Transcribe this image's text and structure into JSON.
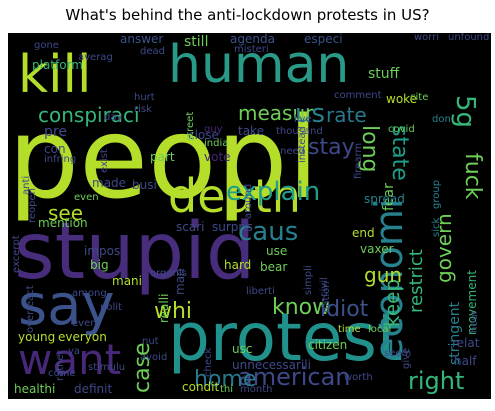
{
  "title": "What's behind the anti-lockdown protests in US?",
  "palette": {
    "lime": "#b5de2b",
    "green": "#6ece58",
    "teal": "#1f9e89",
    "cyan": "#26828e",
    "blue": "#31688e",
    "indigo": "#3e4989",
    "purple": "#482878",
    "dark": "#440154"
  },
  "words": [
    {
      "text": "peopl",
      "color": "#b5de2b"
    },
    {
      "text": "stupid",
      "color": "#472d7b"
    },
    {
      "text": "protest",
      "color": "#21918c"
    },
    {
      "text": "death",
      "color": "#b5de2b"
    },
    {
      "text": "human",
      "color": "#2a9a88"
    },
    {
      "text": "kill",
      "color": "#b5de2b"
    },
    {
      "text": "say",
      "color": "#3b528b"
    },
    {
      "text": "want",
      "color": "#482878"
    },
    {
      "text": "economi",
      "color": "#26828e"
    },
    {
      "text": "5g",
      "color": "#35b779"
    },
    {
      "text": "fuck",
      "color": "#6ece58"
    },
    {
      "text": "explain",
      "color": "#1f9e89"
    },
    {
      "text": "american",
      "color": "#3e4989"
    },
    {
      "text": "us",
      "color": "#26828e"
    },
    {
      "text": "rate",
      "color": "#2a788e"
    },
    {
      "text": "measur",
      "color": "#6ece58"
    },
    {
      "text": "conspiraci",
      "color": "#35b779"
    },
    {
      "text": "stay",
      "color": "#3e4989"
    },
    {
      "text": "long",
      "color": "#6ece58"
    },
    {
      "text": "state",
      "color": "#1f9e89"
    },
    {
      "text": "caus",
      "color": "#26828e"
    },
    {
      "text": "know",
      "color": "#6ece58"
    },
    {
      "text": "idiot",
      "color": "#3b528b"
    },
    {
      "text": "home",
      "color": "#2a788e"
    },
    {
      "text": "case",
      "color": "#6ece58"
    },
    {
      "text": "whi",
      "color": "#b5de2b"
    },
    {
      "text": "see",
      "color": "#b5de2b"
    },
    {
      "text": "restrict",
      "color": "#35b779"
    },
    {
      "text": "govern",
      "color": "#6ece58"
    },
    {
      "text": "right",
      "color": "#35b779"
    },
    {
      "text": "keep",
      "color": "#35b779"
    },
    {
      "text": "gun",
      "color": "#b5de2b"
    },
    {
      "text": "stringent",
      "color": "#26828e"
    },
    {
      "text": "fear",
      "color": "#6ece58"
    },
    {
      "text": "stuff",
      "color": "#6ece58"
    },
    {
      "text": "platform",
      "color": "#35b779"
    },
    {
      "text": "answer",
      "color": "#3b528b"
    },
    {
      "text": "still",
      "color": "#6ece58"
    },
    {
      "text": "agenda",
      "color": "#3b528b"
    },
    {
      "text": "especi",
      "color": "#3b528b"
    },
    {
      "text": "woke",
      "color": "#b5de2b"
    },
    {
      "text": "comment",
      "color": "#3e4989"
    },
    {
      "text": "cite",
      "color": "#6ece58"
    },
    {
      "text": "reopen",
      "color": "#3e4989"
    },
    {
      "text": "anti",
      "color": "#3e4989"
    },
    {
      "text": "excerpt",
      "color": "#3e4989"
    },
    {
      "text": "take",
      "color": "#3e4989"
    },
    {
      "text": "close",
      "color": "#3e4989"
    },
    {
      "text": "thousand",
      "color": "#3e4989"
    },
    {
      "text": "covid",
      "color": "#6ece58"
    },
    {
      "text": "firearm",
      "color": "#3e4989"
    },
    {
      "text": "made",
      "color": "#3e4989"
    },
    {
      "text": "busi",
      "color": "#3e4989"
    },
    {
      "text": "even",
      "color": "#6ece58"
    },
    {
      "text": "mention",
      "color": "#6ece58"
    },
    {
      "text": "scari",
      "color": "#3e4989"
    },
    {
      "text": "surpris",
      "color": "#3e4989"
    },
    {
      "text": "end",
      "color": "#b5de2b"
    },
    {
      "text": "vaxer",
      "color": "#6ece58"
    },
    {
      "text": "part",
      "color": "#6ece58"
    },
    {
      "text": "around",
      "color": "#3e4989"
    },
    {
      "text": "exist",
      "color": "#3e4989"
    },
    {
      "text": "pre",
      "color": "#3e4989"
    },
    {
      "text": "con",
      "color": "#3e4989"
    },
    {
      "text": "impos",
      "color": "#3e4989"
    },
    {
      "text": "big",
      "color": "#6ece58"
    },
    {
      "text": "mani",
      "color": "#b5de2b"
    },
    {
      "text": "among",
      "color": "#3e4989"
    },
    {
      "text": "realli",
      "color": "#6ece58"
    },
    {
      "text": "man",
      "color": "#3e4989"
    },
    {
      "text": "use",
      "color": "#6ece58"
    },
    {
      "text": "hard",
      "color": "#b5de2b"
    },
    {
      "text": "bear",
      "color": "#6ece58"
    },
    {
      "text": "overreact",
      "color": "#3e4989"
    },
    {
      "text": "young",
      "color": "#b5de2b"
    },
    {
      "text": "everyon",
      "color": "#b5de2b"
    },
    {
      "text": "liberti",
      "color": "#3e4989"
    },
    {
      "text": "time",
      "color": "#b5de2b"
    },
    {
      "text": "local",
      "color": "#6ece58"
    },
    {
      "text": "usc",
      "color": "#6ece58"
    },
    {
      "text": "citizen",
      "color": "#6ece58"
    },
    {
      "text": "unnecessarili",
      "color": "#3e4989"
    },
    {
      "text": "healthi",
      "color": "#6ece58"
    },
    {
      "text": "definit",
      "color": "#3e4989"
    },
    {
      "text": "condit",
      "color": "#b5de2b"
    },
    {
      "text": "thi",
      "color": "#6ece58"
    },
    {
      "text": "month",
      "color": "#3e4989"
    },
    {
      "text": "half",
      "color": "#3e4989"
    },
    {
      "text": "relat",
      "color": "#3e4989"
    },
    {
      "text": "movement",
      "color": "#35b779"
    },
    {
      "text": "worth",
      "color": "#3e4989"
    },
    {
      "text": "give",
      "color": "#3e4989"
    },
    {
      "text": "vote",
      "color": "#482878"
    },
    {
      "text": "guy",
      "color": "#482878"
    },
    {
      "text": "india",
      "color": "#6ece58"
    },
    {
      "text": "street",
      "color": "#6ece58"
    },
    {
      "text": "spread",
      "color": "#26828e"
    },
    {
      "text": "group",
      "color": "#26828e"
    },
    {
      "text": "don",
      "color": "#26828e"
    },
    {
      "text": "sick",
      "color": "#26828e"
    },
    {
      "text": "infring",
      "color": "#3e4989"
    },
    {
      "text": "day",
      "color": "#3e4989"
    },
    {
      "text": "hurt",
      "color": "#3e4989"
    },
    {
      "text": "risk",
      "color": "#3e4989"
    },
    {
      "text": "dead",
      "color": "#3e4989"
    },
    {
      "text": "gone",
      "color": "#3e4989"
    },
    {
      "text": "come",
      "color": "#3e4989"
    },
    {
      "text": "instead",
      "color": "#3e4989"
    },
    {
      "text": "live",
      "color": "#3e4989"
    },
    {
      "text": "need",
      "color": "#3e4989"
    },
    {
      "text": "organis",
      "color": "#3e4989"
    },
    {
      "text": "polit",
      "color": "#3e4989"
    },
    {
      "text": "civil",
      "color": "#3e4989"
    },
    {
      "text": "check",
      "color": "#3e4989"
    },
    {
      "text": "even",
      "color": "#3e4989"
    },
    {
      "text": "ya",
      "color": "#3e4989"
    },
    {
      "text": "nut",
      "color": "#3e4989"
    },
    {
      "text": "avoid",
      "color": "#3e4989"
    },
    {
      "text": "stimulu",
      "color": "#3e4989"
    },
    {
      "text": "seem",
      "color": "#3e4989"
    },
    {
      "text": "hour",
      "color": "#3e4989"
    },
    {
      "text": "simpli",
      "color": "#3e4989"
    },
    {
      "text": "nation",
      "color": "#3e4989"
    },
    {
      "text": "rather",
      "color": "#3e4989"
    },
    {
      "text": "misteri",
      "color": "#3e4989"
    },
    {
      "text": "worri",
      "color": "#3e4989"
    },
    {
      "text": "unfound",
      "color": "#3e4989"
    },
    {
      "text": "averag",
      "color": "#3e4989"
    }
  ]
}
